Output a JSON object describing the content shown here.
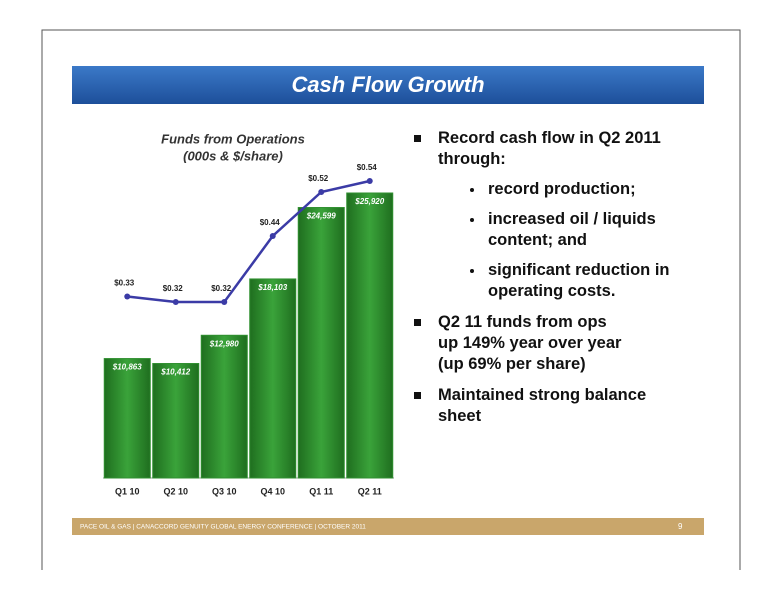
{
  "slide_title": "Cash Flow Growth",
  "chart_data": {
    "type": "bar",
    "title": "Funds from Operations",
    "subtitle": "(000s & $/share)",
    "categories": [
      "Q1 10",
      "Q2 10",
      "Q3 10",
      "Q4 10",
      "Q1 11",
      "Q2 11"
    ],
    "series": [
      {
        "type": "bar",
        "color": "#2f8f2f",
        "values": [
          10863,
          10412,
          12980,
          18103,
          24599,
          25920
        ],
        "value_labels": [
          "$10,863",
          "$10,412",
          "$12,980",
          "$18,103",
          "$24,599",
          "$25,920"
        ]
      },
      {
        "type": "line",
        "axis": "y2",
        "color": "#3b3ba6",
        "values": [
          0.33,
          0.32,
          0.32,
          0.44,
          0.52,
          0.54
        ],
        "value_labels": [
          "$0.33",
          "$0.32",
          "$0.32",
          "$0.44",
          "$0.52",
          "$0.54"
        ]
      }
    ]
  },
  "bullets": [
    {
      "lines": [
        "Record cash flow in Q2 2011",
        "through:"
      ],
      "sub": [
        {
          "lines": [
            "record production;"
          ]
        },
        {
          "lines": [
            "increased oil / liquids",
            "content; and"
          ]
        },
        {
          "lines": [
            "significant reduction in",
            "operating costs."
          ]
        }
      ]
    },
    {
      "lines": [
        "Q2 11 funds from ops",
        "up 149% year over year",
        "(up 69% per share)"
      ]
    },
    {
      "lines": [
        "Maintained strong balance",
        "sheet"
      ]
    }
  ],
  "footer": {
    "text": "PACE OIL & GAS  |  CANACCORD GENUITY GLOBAL ENERGY CONFERENCE  |  OCTOBER 2011",
    "page": "9"
  }
}
